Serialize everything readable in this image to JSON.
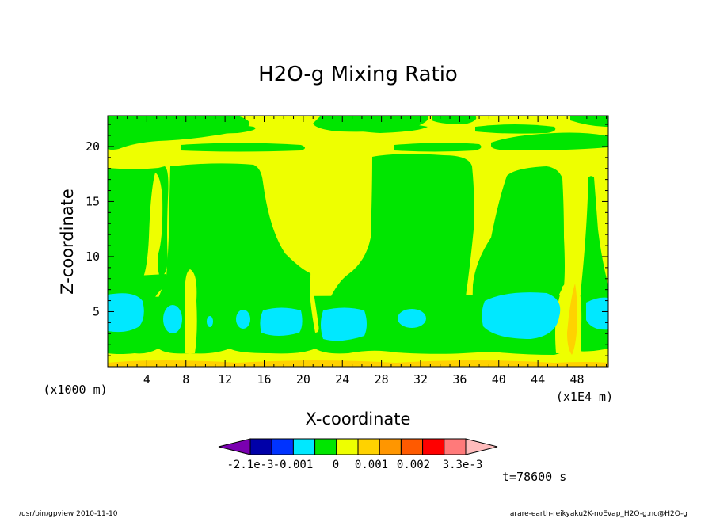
{
  "chart_data": {
    "type": "contour",
    "title": "H2O-g Mixing Ratio",
    "xlabel": "X-coordinate",
    "ylabel": "Z-coordinate",
    "x_unit_left": "(x1000 m)",
    "x_unit_right": "(x1E4 m)",
    "x_ticks": [
      "4",
      "8",
      "12",
      "16",
      "20",
      "24",
      "28",
      "32",
      "36",
      "40",
      "44",
      "48"
    ],
    "y_ticks": [
      "5",
      "10",
      "15",
      "20"
    ],
    "xlim": [
      0,
      51.2
    ],
    "ylim": [
      0,
      22.8
    ],
    "time_label": "t=78600 s",
    "colorbar": {
      "labels": [
        "-2.1e-3",
        "-0.001",
        "0",
        "0.001",
        "0.002",
        "3.3e-3"
      ],
      "colors": [
        "#7a00b0",
        "#0000a8",
        "#0033ff",
        "#00e8ff",
        "#00e600",
        "#eeff00",
        "#ffd200",
        "#ff9600",
        "#ff5a00",
        "#ff0000",
        "#ff7a7a",
        "#ffbcbc"
      ]
    },
    "field_colors": {
      "yellow": "#eeff00",
      "green": "#00e600",
      "cyan": "#00e8ff",
      "orange": "#ffd200"
    }
  },
  "footer": {
    "left": "/usr/bin/gpview   2010-11-10",
    "right": "arare-earth-reikyaku2K-noEvap_H2O-g.nc@H2O-g"
  }
}
